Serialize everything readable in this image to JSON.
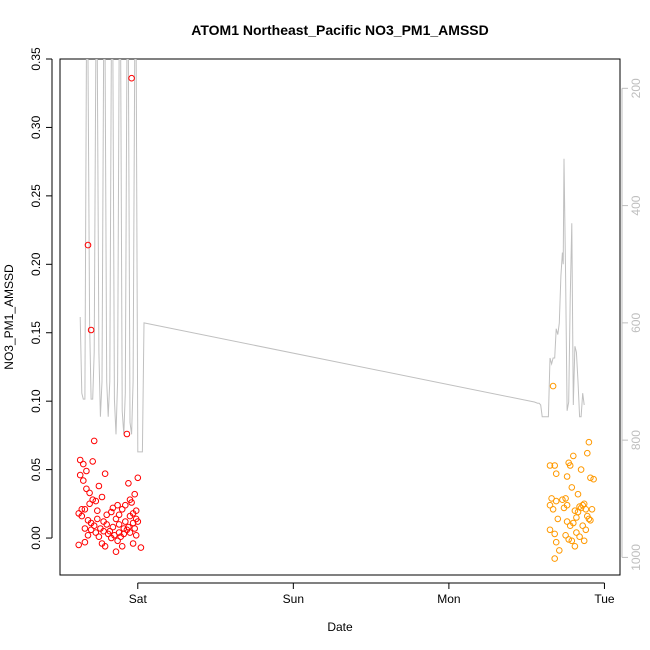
{
  "chart_data": {
    "type": "scatter",
    "title": "ATOM1 Northeast_Pacific NO3_PM1_AMSSD",
    "xlabel": "Date",
    "ylabel": "NO3_PM1_AMSSD",
    "x_ticks": [
      {
        "label": "Sat",
        "day": 1.0
      },
      {
        "label": "Sun",
        "day": 2.0
      },
      {
        "label": "Mon",
        "day": 3.0
      },
      {
        "label": "Tue",
        "day": 4.0
      }
    ],
    "xlim_days": [
      0.5,
      4.1
    ],
    "ylim": [
      -0.027,
      0.35
    ],
    "y_ticks": [
      0.0,
      0.05,
      0.1,
      0.15,
      0.2,
      0.25,
      0.3,
      0.35
    ],
    "y_tick_labels": [
      "0.00",
      "0.05",
      "0.10",
      "0.15",
      "0.20",
      "0.25",
      "0.30",
      "0.35"
    ],
    "y2_ticks": [
      200,
      400,
      600,
      800,
      1000
    ],
    "y2_tick_labels": [
      "200",
      "400",
      "600",
      "800",
      "1000"
    ],
    "y2lim": [
      1030,
      150
    ],
    "grid": false,
    "colors": {
      "series_1": "#ff0000",
      "series_2": "#ff9900",
      "pressure_line": "#c0c0c0",
      "right_axis": "#bebebe"
    },
    "series": [
      {
        "color": "#ff0000",
        "points": [
          [
            0.63,
            0.057
          ],
          [
            0.65,
            0.054
          ],
          [
            0.67,
            0.049
          ],
          [
            0.68,
            0.214
          ],
          [
            0.7,
            0.152
          ],
          [
            0.71,
            0.056
          ],
          [
            0.72,
            0.071
          ],
          [
            0.63,
            0.046
          ],
          [
            0.65,
            0.042
          ],
          [
            0.67,
            0.036
          ],
          [
            0.69,
            0.033
          ],
          [
            0.71,
            0.028
          ],
          [
            0.73,
            0.027
          ],
          [
            0.75,
            0.038
          ],
          [
            0.77,
            0.03
          ],
          [
            0.79,
            0.047
          ],
          [
            0.62,
            0.018
          ],
          [
            0.64,
            0.016
          ],
          [
            0.66,
            0.021
          ],
          [
            0.68,
            0.013
          ],
          [
            0.7,
            0.011
          ],
          [
            0.72,
            0.009
          ],
          [
            0.74,
            0.014
          ],
          [
            0.76,
            0.007
          ],
          [
            0.78,
            0.012
          ],
          [
            0.8,
            0.01
          ],
          [
            0.62,
            -0.005
          ],
          [
            0.66,
            -0.003
          ],
          [
            0.68,
            0.002
          ],
          [
            0.7,
            0.006
          ],
          [
            0.73,
            0.004
          ],
          [
            0.75,
            0.001
          ],
          [
            0.77,
            -0.004
          ],
          [
            0.79,
            -0.006
          ],
          [
            0.81,
            0.003
          ],
          [
            0.83,
            0.019
          ],
          [
            0.84,
            0.022
          ],
          [
            0.86,
            0.014
          ],
          [
            0.88,
            0.017
          ],
          [
            0.9,
            0.021
          ],
          [
            0.92,
            0.024
          ],
          [
            0.82,
            0.005
          ],
          [
            0.83,
            0.0
          ],
          [
            0.85,
            0.002
          ],
          [
            0.87,
            -0.002
          ],
          [
            0.88,
            0.004
          ],
          [
            0.89,
            0.001
          ],
          [
            0.91,
            0.003
          ],
          [
            0.93,
            0.006
          ],
          [
            0.94,
            0.008
          ],
          [
            0.86,
            -0.01
          ],
          [
            0.9,
            -0.006
          ],
          [
            0.92,
            0.012
          ],
          [
            0.95,
            0.016
          ],
          [
            0.97,
            0.018
          ],
          [
            0.99,
            0.014
          ],
          [
            1.0,
            0.012
          ],
          [
            0.96,
            0.026
          ],
          [
            0.98,
            0.032
          ],
          [
            1.0,
            0.044
          ],
          [
            0.98,
            0.007
          ],
          [
            0.99,
            0.002
          ],
          [
            0.97,
            -0.004
          ],
          [
            1.02,
            -0.007
          ],
          [
            0.95,
            0.028
          ],
          [
            0.93,
            0.076
          ],
          [
            0.94,
            0.04
          ],
          [
            0.96,
            0.336
          ],
          [
            0.84,
            0.008
          ],
          [
            0.87,
            0.024
          ],
          [
            0.8,
            0.017
          ],
          [
            0.78,
            0.005
          ],
          [
            0.74,
            0.02
          ],
          [
            0.69,
            0.025
          ],
          [
            0.88,
            0.01
          ],
          [
            0.91,
            0.007
          ],
          [
            0.95,
            0.004
          ],
          [
            0.97,
            0.011
          ],
          [
            0.99,
            0.02
          ],
          [
            0.64,
            0.021
          ],
          [
            0.66,
            0.007
          ]
        ]
      },
      {
        "color": "#ff9900",
        "points": [
          [
            3.67,
            0.111
          ],
          [
            3.65,
            0.053
          ],
          [
            3.68,
            0.053
          ],
          [
            3.69,
            0.047
          ],
          [
            3.66,
            0.029
          ],
          [
            3.65,
            0.024
          ],
          [
            3.67,
            0.021
          ],
          [
            3.69,
            0.027
          ],
          [
            3.7,
            0.014
          ],
          [
            3.65,
            0.006
          ],
          [
            3.68,
            0.003
          ],
          [
            3.69,
            -0.003
          ],
          [
            3.68,
            -0.015
          ],
          [
            3.71,
            -0.009
          ],
          [
            3.73,
            0.028
          ],
          [
            3.74,
            0.022
          ],
          [
            3.75,
            0.029
          ],
          [
            3.76,
            0.024
          ],
          [
            3.77,
            0.055
          ],
          [
            3.78,
            0.053
          ],
          [
            3.76,
            0.045
          ],
          [
            3.79,
            0.037
          ],
          [
            3.8,
            0.06
          ],
          [
            3.76,
            0.012
          ],
          [
            3.78,
            0.009
          ],
          [
            3.8,
            0.011
          ],
          [
            3.81,
            0.02
          ],
          [
            3.83,
            0.019
          ],
          [
            3.82,
            0.015
          ],
          [
            3.75,
            0.002
          ],
          [
            3.77,
            -0.001
          ],
          [
            3.79,
            -0.002
          ],
          [
            3.81,
            -0.006
          ],
          [
            3.82,
            0.004
          ],
          [
            3.84,
            0.023
          ],
          [
            3.86,
            0.024
          ],
          [
            3.85,
            0.022
          ],
          [
            3.87,
            0.025
          ],
          [
            3.88,
            0.021
          ],
          [
            3.89,
            0.016
          ],
          [
            3.9,
            0.014
          ],
          [
            3.91,
            0.013
          ],
          [
            3.89,
            0.062
          ],
          [
            3.9,
            0.07
          ],
          [
            3.91,
            0.044
          ],
          [
            3.93,
            0.043
          ],
          [
            3.86,
            0.009
          ],
          [
            3.88,
            0.006
          ],
          [
            3.84,
            0.001
          ],
          [
            3.87,
            -0.002
          ],
          [
            3.85,
            0.05
          ],
          [
            3.83,
            0.032
          ],
          [
            3.92,
            0.021
          ]
        ]
      }
    ],
    "pressure_line": {
      "axis": "right",
      "points": [
        [
          0.63,
          590
        ],
        [
          0.64,
          720
        ],
        [
          0.65,
          730
        ],
        [
          0.66,
          730
        ],
        [
          0.67,
          150
        ],
        [
          0.68,
          150
        ],
        [
          0.69,
          600
        ],
        [
          0.7,
          730
        ],
        [
          0.71,
          730
        ],
        [
          0.72,
          650
        ],
        [
          0.73,
          150
        ],
        [
          0.74,
          150
        ],
        [
          0.75,
          650
        ],
        [
          0.76,
          760
        ],
        [
          0.77,
          700
        ],
        [
          0.78,
          150
        ],
        [
          0.79,
          150
        ],
        [
          0.8,
          700
        ],
        [
          0.81,
          760
        ],
        [
          0.82,
          700
        ],
        [
          0.83,
          150
        ],
        [
          0.84,
          150
        ],
        [
          0.85,
          730
        ],
        [
          0.86,
          790
        ],
        [
          0.87,
          700
        ],
        [
          0.88,
          150
        ],
        [
          0.89,
          150
        ],
        [
          0.9,
          750
        ],
        [
          0.91,
          790
        ],
        [
          0.92,
          720
        ],
        [
          0.93,
          150
        ],
        [
          0.94,
          150
        ],
        [
          0.95,
          770
        ],
        [
          0.96,
          790
        ],
        [
          0.97,
          700
        ],
        [
          0.98,
          150
        ],
        [
          0.99,
          150
        ],
        [
          1.0,
          820
        ],
        [
          1.01,
          820
        ],
        [
          1.02,
          820
        ],
        [
          1.03,
          820
        ],
        [
          1.04,
          600
        ],
        [
          3.55,
          735
        ],
        [
          3.57,
          737
        ],
        [
          3.58,
          737
        ],
        [
          3.59,
          740
        ],
        [
          3.6,
          760
        ],
        [
          3.62,
          760
        ],
        [
          3.64,
          760
        ],
        [
          3.65,
          660
        ],
        [
          3.66,
          670
        ],
        [
          3.67,
          660
        ],
        [
          3.68,
          660
        ],
        [
          3.69,
          610
        ],
        [
          3.7,
          620
        ],
        [
          3.71,
          600
        ],
        [
          3.72,
          520
        ],
        [
          3.73,
          480
        ],
        [
          3.735,
          500
        ],
        [
          3.74,
          320
        ],
        [
          3.745,
          420
        ],
        [
          3.75,
          520
        ],
        [
          3.76,
          750
        ],
        [
          3.77,
          735
        ],
        [
          3.78,
          560
        ],
        [
          3.79,
          430
        ],
        [
          3.8,
          740
        ],
        [
          3.81,
          640
        ],
        [
          3.82,
          650
        ],
        [
          3.83,
          700
        ],
        [
          3.84,
          760
        ],
        [
          3.85,
          760
        ],
        [
          3.86,
          720
        ],
        [
          3.87,
          740
        ]
      ]
    }
  }
}
